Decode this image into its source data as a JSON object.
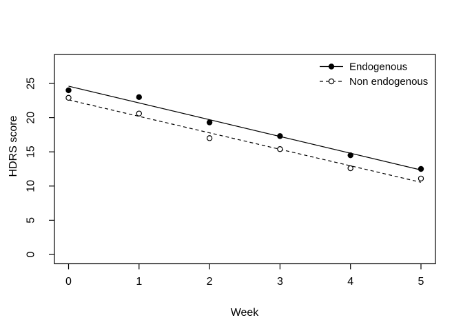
{
  "chart_data": {
    "type": "scatter",
    "title": "",
    "xlabel": "Week",
    "ylabel": "HDRS score",
    "x": [
      0,
      1,
      2,
      3,
      4,
      5
    ],
    "xticks": [
      0,
      1,
      2,
      3,
      4,
      5
    ],
    "yticks": [
      0,
      5,
      10,
      15,
      20,
      25
    ],
    "xlim": [
      -0.2,
      5.2
    ],
    "ylim": [
      0,
      29
    ],
    "grid": false,
    "legend_position": "top-right",
    "series": [
      {
        "name": "Endogenous",
        "marker": "filled-circle",
        "line_style": "solid",
        "values": [
          24.0,
          23.0,
          19.3,
          17.3,
          14.5,
          12.5
        ],
        "fit_line": {
          "intercept": 24.6,
          "slope": -2.45
        }
      },
      {
        "name": "Non endogenous",
        "marker": "open-circle",
        "line_style": "dashed",
        "values": [
          22.9,
          20.6,
          17.0,
          15.4,
          12.6,
          11.1
        ],
        "fit_line": {
          "intercept": 22.6,
          "slope": -2.41
        }
      }
    ],
    "colors": {
      "foreground": "#000000",
      "background": "#ffffff"
    }
  }
}
